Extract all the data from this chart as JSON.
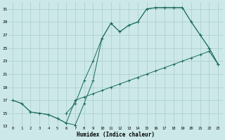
{
  "xlabel": "Humidex (Indice chaleur)",
  "bg_color": "#cce8e8",
  "grid_color": "#aacccc",
  "line_color": "#1a6b5a",
  "xlim": [
    -0.5,
    23.5
  ],
  "ylim": [
    13,
    32
  ],
  "xticks": [
    0,
    1,
    2,
    3,
    4,
    5,
    6,
    7,
    8,
    9,
    10,
    11,
    12,
    13,
    14,
    15,
    16,
    17,
    18,
    19,
    20,
    21,
    22,
    23
  ],
  "yticks": [
    13,
    15,
    17,
    19,
    21,
    23,
    25,
    27,
    29,
    31
  ],
  "curve1_x": [
    0,
    1,
    2,
    3,
    4,
    5,
    6,
    7,
    8,
    9,
    10,
    11,
    12,
    13,
    14,
    15,
    16,
    17,
    18,
    19,
    20,
    21,
    22,
    23
  ],
  "curve1_y": [
    17,
    16.5,
    15.2,
    15,
    14.8,
    14.2,
    13.5,
    17,
    17.5,
    18,
    18.5,
    19,
    19.5,
    20,
    20.5,
    21,
    21.5,
    22,
    22.5,
    23,
    23.5,
    24,
    24.5,
    22.5
  ],
  "curve2_x": [
    0,
    1,
    2,
    3,
    4,
    5,
    6,
    7,
    8,
    9,
    10,
    11,
    12,
    13,
    14,
    15,
    16,
    17,
    18,
    19,
    20,
    21,
    22,
    23
  ],
  "curve2_y": [
    17,
    16.5,
    15.2,
    15,
    14.8,
    14.2,
    13.5,
    13.2,
    16.5,
    20,
    26.5,
    28.8,
    27.5,
    28.5,
    29,
    31,
    31.2,
    31.2,
    31.2,
    31.2,
    29,
    27,
    25,
    22.5
  ],
  "curve3_x": [
    6,
    7,
    8,
    9,
    10,
    11,
    12,
    13,
    14,
    15,
    16,
    17,
    18,
    19,
    20,
    21,
    22,
    23
  ],
  "curve3_y": [
    15,
    16.5,
    20,
    23,
    26.5,
    28.8,
    27.5,
    28.5,
    29,
    31,
    31.2,
    31.2,
    31.2,
    31.2,
    29,
    27,
    25,
    22.5
  ]
}
